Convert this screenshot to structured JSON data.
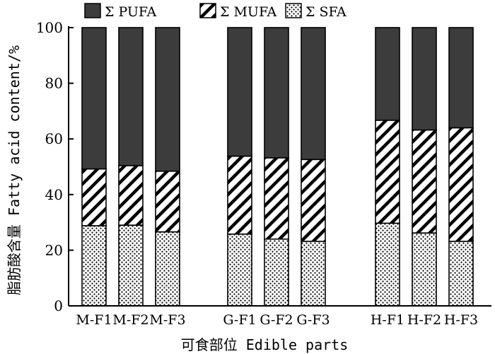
{
  "chart_data": {
    "type": "bar",
    "stacked": true,
    "categories": [
      "M-F1",
      "M-F2",
      "M-F3",
      "G-F1",
      "G-F2",
      "G-F3",
      "H-F1",
      "H-F2",
      "H-F3"
    ],
    "groups": [
      [
        "M-F1",
        "M-F2",
        "M-F3"
      ],
      [
        "G-F1",
        "G-F2",
        "G-F3"
      ],
      [
        "H-F1",
        "H-F2",
        "H-F3"
      ]
    ],
    "series": [
      {
        "name": "Σ SFA",
        "pattern": "dots",
        "values": [
          28.8,
          29.0,
          26.6,
          25.8,
          24.0,
          23.2,
          29.7,
          26.2,
          23.2
        ]
      },
      {
        "name": "Σ MUFA",
        "pattern": "diagonal",
        "values": [
          20.4,
          21.4,
          21.8,
          28.0,
          29.2,
          29.4,
          37.0,
          37.0,
          40.8
        ]
      },
      {
        "name": "Σ PUFA",
        "pattern": "solid",
        "values": [
          50.8,
          49.6,
          51.6,
          46.2,
          46.8,
          47.4,
          33.3,
          36.8,
          36.0
        ]
      }
    ],
    "legend_order": [
      "Σ PUFA",
      "Σ MUFA",
      "Σ SFA"
    ],
    "legend_position": "top",
    "xlabel": "可食部位 Edible parts",
    "ylabel": "脂肪酸含量 Fatty acid content/%",
    "ylim": [
      0,
      100
    ],
    "yticks": [
      0,
      20,
      40,
      60,
      80,
      100
    ],
    "grid": false,
    "colors": {
      "pufa": "#3c3c3c",
      "stroke": "#000000",
      "background": "#ffffff"
    }
  }
}
